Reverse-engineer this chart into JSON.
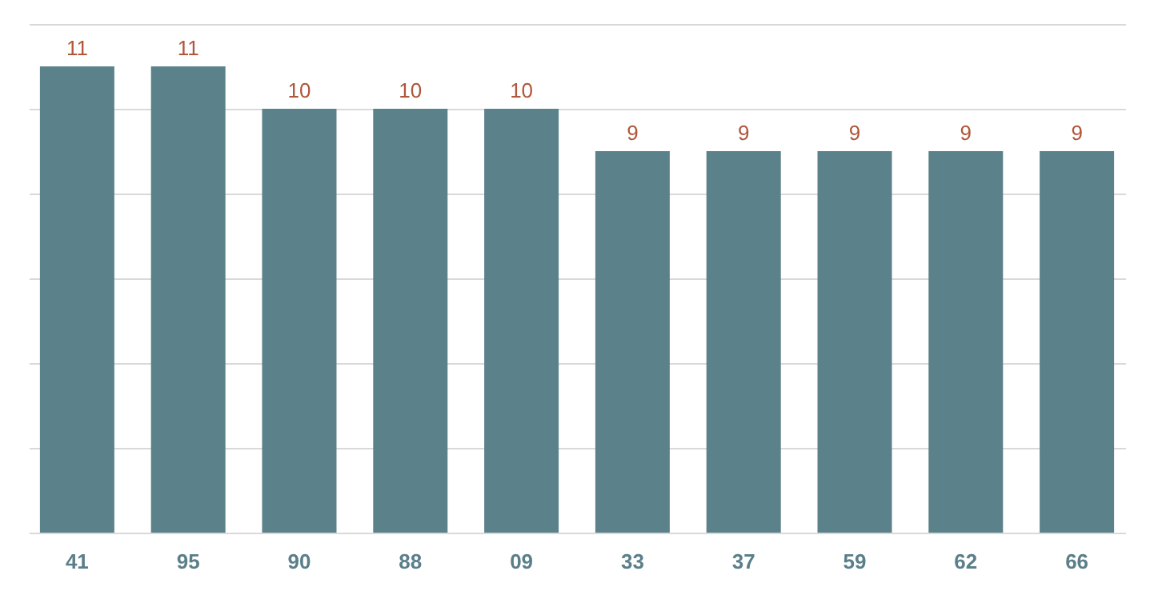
{
  "chart_data": {
    "type": "bar",
    "categories": [
      "41",
      "95",
      "90",
      "88",
      "09",
      "33",
      "37",
      "59",
      "62",
      "66"
    ],
    "values": [
      11,
      11,
      10,
      10,
      10,
      9,
      9,
      9,
      9,
      9
    ],
    "color": "#5b818a",
    "ylim": [
      0,
      12
    ],
    "yticks": [
      {
        "value": 0,
        "label": null
      },
      {
        "value": 2,
        "label": null
      },
      {
        "value": 4,
        "label": null
      },
      {
        "value": 6,
        "label": null
      },
      {
        "value": 8,
        "label": null
      },
      {
        "value": 10,
        "label": null
      },
      {
        "value": 12,
        "label": null
      }
    ],
    "grid": "y",
    "tick_labels": "x",
    "data_labels": true
  }
}
